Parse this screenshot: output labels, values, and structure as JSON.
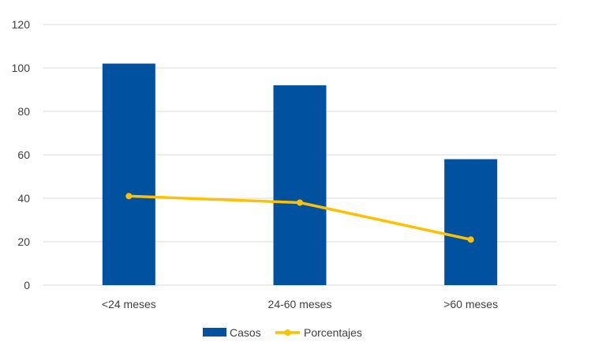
{
  "chart_data": {
    "type": "bar",
    "title": "",
    "xlabel": "",
    "ylabel": "",
    "categories": [
      "<24 meses",
      "24-60 meses",
      ">60 meses"
    ],
    "ylim": [
      0,
      120
    ],
    "yticks": [
      0,
      20,
      40,
      60,
      80,
      100,
      120
    ],
    "grid": true,
    "legend_position": "bottom",
    "series": [
      {
        "name": "Casos",
        "type": "bar",
        "color": "#0052A0",
        "values": [
          102,
          92,
          58
        ]
      },
      {
        "name": "Porcentajes",
        "type": "line",
        "color": "#FFC000",
        "values": [
          41,
          38,
          21
        ]
      }
    ]
  }
}
